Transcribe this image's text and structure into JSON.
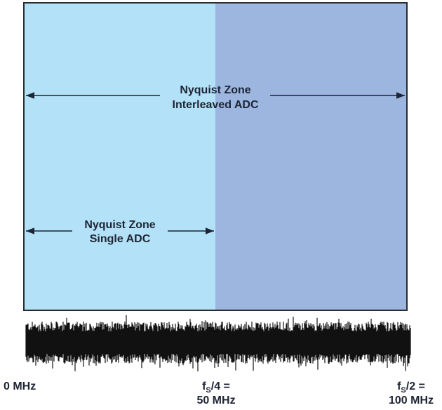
{
  "zones": {
    "interleaved": {
      "line1": "Nyquist Zone",
      "line2": "Interleaved ADC"
    },
    "single": {
      "line1": "Nyquist Zone",
      "line2": "Single ADC"
    }
  },
  "axis_labels": {
    "start": "0 MHz",
    "quarter": {
      "f": "f",
      "sub": "S",
      "rest": "/4 =",
      "value": "50 MHz"
    },
    "half": {
      "f": "f",
      "sub": "S",
      "rest": "/2 =",
      "value": "100 MHz"
    }
  }
}
